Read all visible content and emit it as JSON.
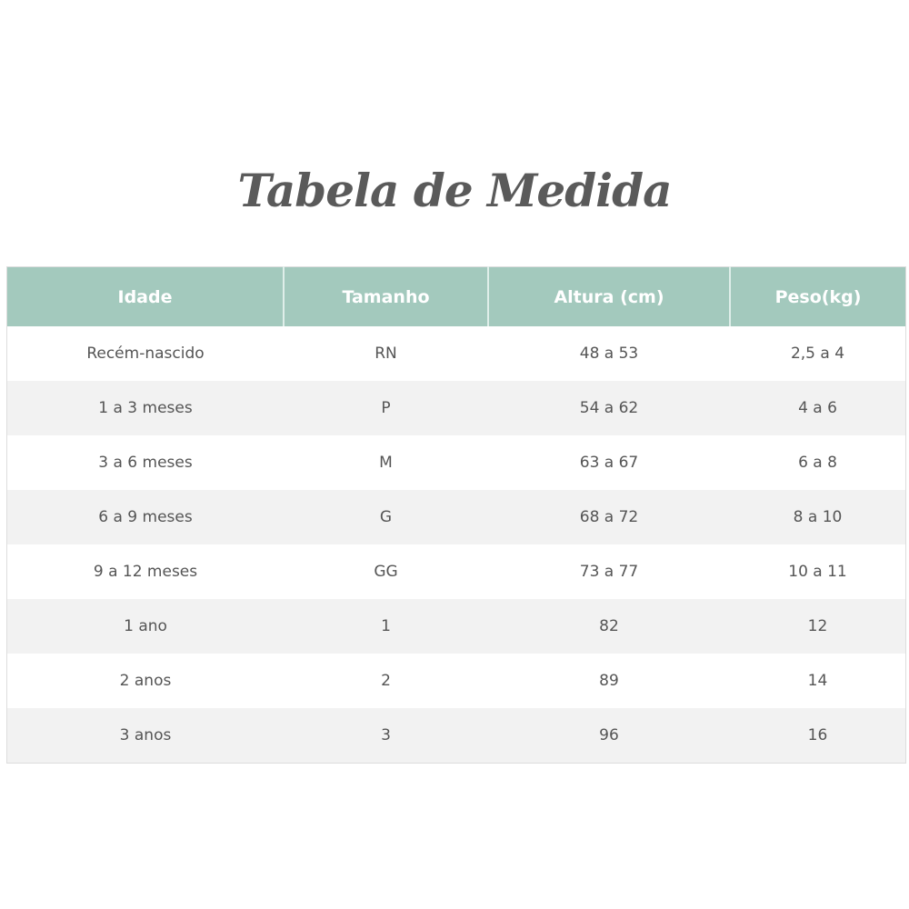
{
  "title": "Tabela de Medida",
  "headers": [
    "Idade",
    "Tamanho",
    "Altura (cm)",
    "Peso(kg)"
  ],
  "rows": [
    [
      "Recém-nascido",
      "RN",
      "48 a 53",
      "2,5 a 4"
    ],
    [
      "1 a 3 meses",
      "P",
      "54 a 62",
      "4 a 6"
    ],
    [
      "3 a 6 meses",
      "M",
      "63 a 67",
      "6 a 8"
    ],
    [
      "6 a 9 meses",
      "G",
      "68 a 72",
      "8 a 10"
    ],
    [
      "9 a 12 meses",
      "GG",
      "73 a 77",
      "10 a 11"
    ],
    [
      "1 ano",
      "1",
      "82",
      "12"
    ],
    [
      "2 anos",
      "2",
      "89",
      "14"
    ],
    [
      "3 anos",
      "3",
      "96",
      "16"
    ]
  ],
  "colors": {
    "header": "#a3c9bd",
    "stripe": "#f2f2f2"
  }
}
